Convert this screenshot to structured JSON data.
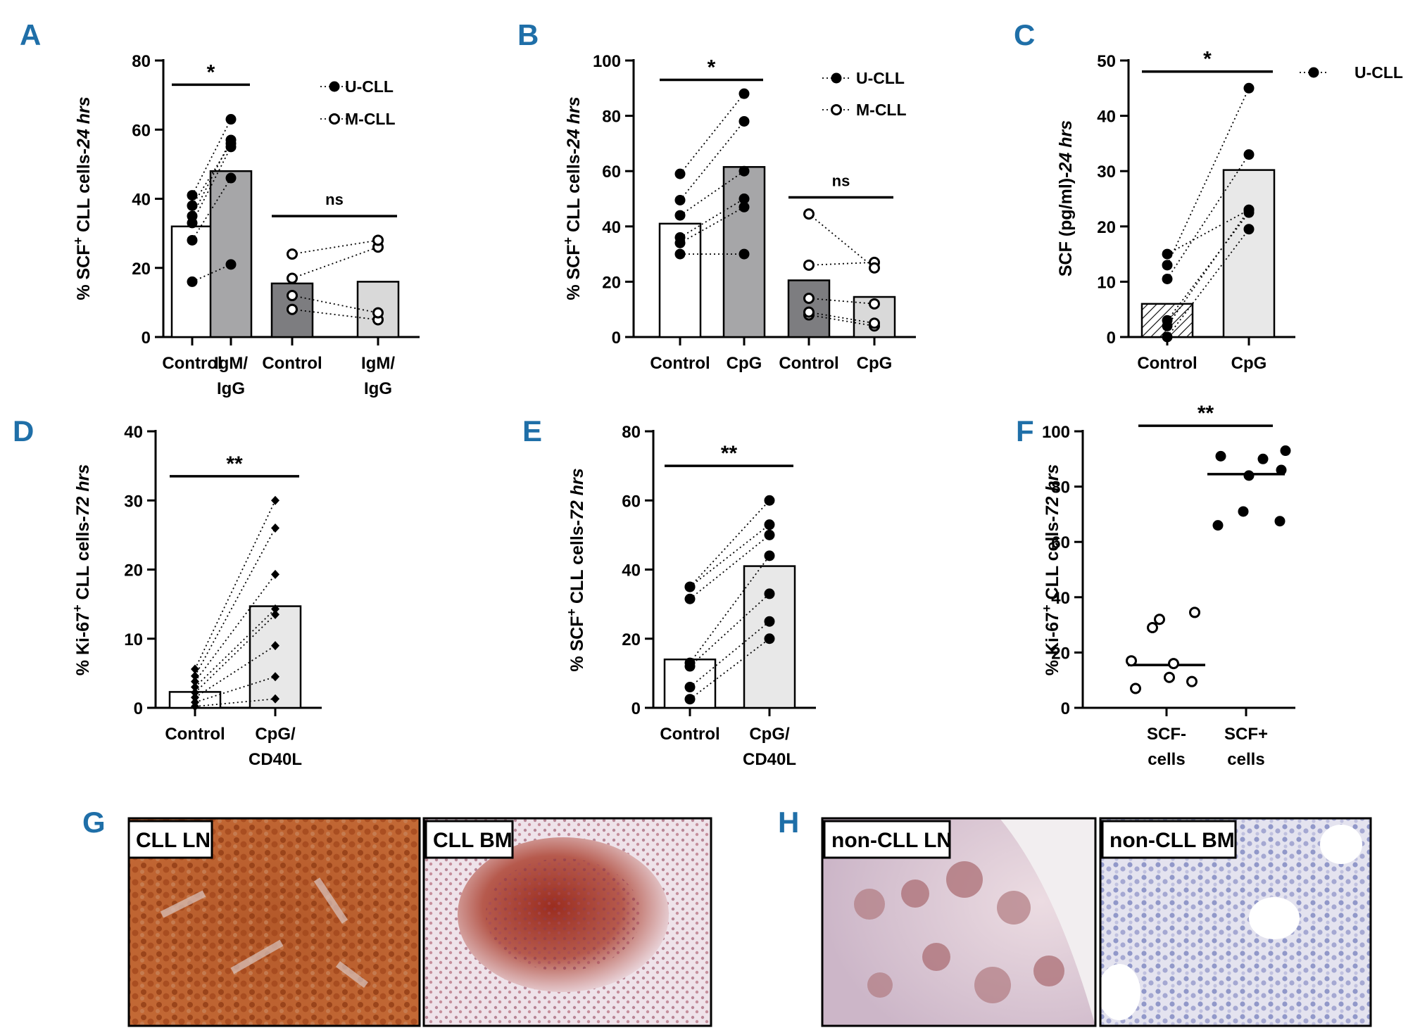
{
  "panel_labels": [
    "A",
    "B",
    "C",
    "D",
    "E",
    "F",
    "G",
    "H"
  ],
  "images": {
    "G": [
      "CLL LN",
      "CLL BM"
    ],
    "H": [
      "non-CLL LN",
      "non-CLL BM"
    ]
  },
  "chart_data": [
    {
      "id": "A",
      "type": "bar",
      "ylabel_parts": [
        "% SCF",
        "+",
        " CLL cells-",
        "24 hrs"
      ],
      "ylim": [
        0,
        80
      ],
      "yticks": [
        0,
        20,
        40,
        60,
        80
      ],
      "categories": [
        [
          "Control"
        ],
        [
          "IgM/",
          "IgG"
        ],
        [
          "Control"
        ],
        [
          "IgM/",
          "IgG"
        ]
      ],
      "bars": [
        32,
        48,
        15.5,
        16
      ],
      "bar_colors": [
        "#ffffff",
        "#a6a6a8",
        "#7d7d80",
        "#d9d9d9"
      ],
      "legend": [
        {
          "label": "U-CLL",
          "marker": "filled"
        },
        {
          "label": "M-CLL",
          "marker": "open"
        }
      ],
      "paired": [
        {
          "from": 0,
          "to": 1,
          "marker": "filled",
          "pairs": [
            [
              16,
              21
            ],
            [
              28,
              46
            ],
            [
              33,
              55
            ],
            [
              35,
              57
            ],
            [
              38,
              56
            ],
            [
              41,
              63
            ]
          ]
        },
        {
          "from": 2,
          "to": 3,
          "marker": "open",
          "pairs": [
            [
              8,
              5
            ],
            [
              12,
              7
            ],
            [
              17,
              26
            ],
            [
              24,
              28
            ]
          ]
        }
      ],
      "significance": [
        {
          "from": 0,
          "to": 1,
          "label": "*",
          "y": 73
        },
        {
          "from": 2,
          "to": 3,
          "label": "ns",
          "y": 35
        }
      ]
    },
    {
      "id": "B",
      "type": "bar",
      "ylabel_parts": [
        "% SCF",
        "+",
        " CLL cells-",
        "24 hrs"
      ],
      "ylim": [
        0,
        100
      ],
      "yticks": [
        0,
        20,
        40,
        60,
        80,
        100
      ],
      "categories": [
        [
          "Control"
        ],
        [
          "CpG"
        ],
        [
          "Control"
        ],
        [
          "CpG"
        ]
      ],
      "bars": [
        41,
        61.5,
        20.5,
        14.5
      ],
      "bar_colors": [
        "#ffffff",
        "#a6a6a8",
        "#7d7d80",
        "#d9d9d9"
      ],
      "legend": [
        {
          "label": "U-CLL",
          "marker": "filled"
        },
        {
          "label": "M-CLL",
          "marker": "open"
        }
      ],
      "paired": [
        {
          "from": 0,
          "to": 1,
          "marker": "filled",
          "pairs": [
            [
              30,
              30
            ],
            [
              34,
              47
            ],
            [
              36,
              50
            ],
            [
              44,
              60
            ],
            [
              49.5,
              78
            ],
            [
              59,
              88
            ]
          ]
        },
        {
          "from": 2,
          "to": 3,
          "marker": "open",
          "pairs": [
            [
              8,
              4
            ],
            [
              9,
              5
            ],
            [
              14,
              12
            ],
            [
              26,
              27
            ],
            [
              44.5,
              25
            ]
          ]
        }
      ],
      "significance": [
        {
          "from": 0,
          "to": 1,
          "label": "*",
          "y": 93
        },
        {
          "from": 2,
          "to": 3,
          "label": "ns",
          "y": 50.5
        }
      ]
    },
    {
      "id": "C",
      "type": "bar",
      "ylabel_parts": [
        "SCF (pg/ml)-",
        "24 hrs"
      ],
      "ylim": [
        0,
        50
      ],
      "yticks": [
        0,
        10,
        20,
        30,
        40,
        50
      ],
      "categories": [
        [
          "Control"
        ],
        [
          "CpG"
        ]
      ],
      "bars": [
        6,
        30.2
      ],
      "bar_colors": [
        "hatch",
        "#e8e8e8"
      ],
      "legend": [
        {
          "label": "U-CLL",
          "marker": "filled"
        }
      ],
      "paired": [
        {
          "from": 0,
          "to": 1,
          "marker": "filled",
          "pairs": [
            [
              0,
              19.5
            ],
            [
              2,
              23
            ],
            [
              3,
              22.5
            ],
            [
              10.5,
              33
            ],
            [
              13,
              45
            ],
            [
              15,
              23
            ]
          ]
        }
      ],
      "significance": [
        {
          "from": 0,
          "to": 1,
          "label": "*",
          "y": 48
        }
      ]
    },
    {
      "id": "D",
      "type": "bar",
      "ylabel_parts": [
        "% Ki-67",
        "+",
        " CLL cells-",
        "72 hrs"
      ],
      "ylim": [
        0,
        40
      ],
      "yticks": [
        0,
        10,
        20,
        30,
        40
      ],
      "categories": [
        [
          "Control"
        ],
        [
          "CpG/",
          "CD40L"
        ]
      ],
      "bars": [
        2.3,
        14.7
      ],
      "bar_colors": [
        "#ffffff",
        "#e8e8e8"
      ],
      "legend": [],
      "paired": [
        {
          "from": 0,
          "to": 1,
          "marker": "diamond",
          "pairs": [
            [
              0.2,
              1.3
            ],
            [
              0.8,
              4.5
            ],
            [
              1.5,
              9
            ],
            [
              2.2,
              13.5
            ],
            [
              3,
              14.3
            ],
            [
              3.8,
              19.3
            ],
            [
              4.6,
              26
            ],
            [
              5.6,
              30
            ]
          ]
        }
      ],
      "significance": [
        {
          "from": 0,
          "to": 1,
          "label": "**",
          "y": 33.5
        }
      ]
    },
    {
      "id": "E",
      "type": "bar",
      "ylabel_parts": [
        "% SCF",
        "+",
        " CLL cells-",
        "72 hrs"
      ],
      "ylim": [
        0,
        80
      ],
      "yticks": [
        0,
        20,
        40,
        60,
        80
      ],
      "categories": [
        [
          "Control"
        ],
        [
          "CpG/",
          "CD40L"
        ]
      ],
      "bars": [
        14,
        41
      ],
      "bar_colors": [
        "#ffffff",
        "#e8e8e8"
      ],
      "legend": [],
      "paired": [
        {
          "from": 0,
          "to": 1,
          "marker": "filled",
          "pairs": [
            [
              2.5,
              20
            ],
            [
              6,
              25
            ],
            [
              12,
              33
            ],
            [
              13,
              44
            ],
            [
              31.5,
              50
            ],
            [
              35,
              53
            ],
            [
              35,
              60
            ]
          ]
        }
      ],
      "significance": [
        {
          "from": 0,
          "to": 1,
          "label": "**",
          "y": 70
        }
      ]
    },
    {
      "id": "F",
      "type": "scatter",
      "ylabel_parts": [
        "% Ki-67",
        "+",
        " CLL cells-",
        "72 hrs"
      ],
      "ylim": [
        0,
        100
      ],
      "yticks": [
        0,
        20,
        40,
        60,
        80,
        100
      ],
      "categories": [
        [
          "SCF-",
          "cells"
        ],
        [
          "SCF+",
          "cells"
        ]
      ],
      "groups": [
        {
          "marker": "open",
          "median": 15.5,
          "points": [
            [
              -0.25,
              17
            ],
            [
              0.05,
              16
            ],
            [
              -0.05,
              32
            ],
            [
              0.2,
              34.5
            ],
            [
              -0.1,
              29
            ],
            [
              -0.22,
              7
            ],
            [
              0.02,
              11
            ],
            [
              0.18,
              9.5
            ]
          ]
        },
        {
          "marker": "filled",
          "median": 84.5,
          "points": [
            [
              -0.18,
              91
            ],
            [
              0.12,
              90
            ],
            [
              0.28,
              93
            ],
            [
              0.02,
              84
            ],
            [
              0.25,
              86
            ],
            [
              -0.2,
              66
            ],
            [
              -0.02,
              71
            ],
            [
              0.24,
              67.5
            ]
          ]
        }
      ],
      "significance": [
        {
          "from": 0,
          "to": 1,
          "label": "**",
          "y": 102
        }
      ]
    }
  ]
}
